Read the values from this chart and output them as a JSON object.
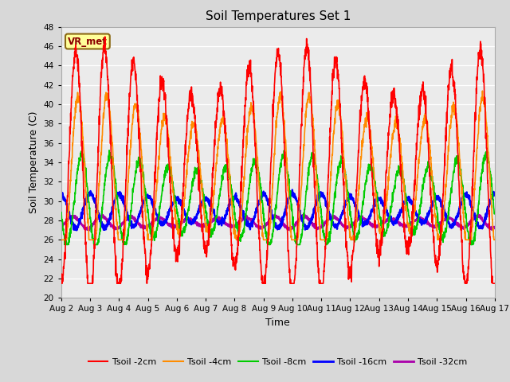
{
  "title": "Soil Temperatures Set 1",
  "xlabel": "Time",
  "ylabel": "Soil Temperature (C)",
  "ylim": [
    20,
    48
  ],
  "yticks": [
    20,
    22,
    24,
    26,
    28,
    30,
    32,
    34,
    36,
    38,
    40,
    42,
    44,
    46,
    48
  ],
  "x_labels": [
    "Aug 2",
    "Aug 3",
    "Aug 4",
    "Aug 5",
    "Aug 6",
    "Aug 7",
    "Aug 8",
    "Aug 9",
    "Aug 10",
    "Aug 11",
    "Aug 12",
    "Aug 13",
    "Aug 14",
    "Aug 15",
    "Aug 16",
    "Aug 17"
  ],
  "annotation_text": "VR_met",
  "annotation_color": "#8B0000",
  "annotation_bg": "#FFFF99",
  "annotation_border": "#8B6914",
  "colors": {
    "Tsoil -2cm": "#FF0000",
    "Tsoil -4cm": "#FF8C00",
    "Tsoil -8cm": "#00CC00",
    "Tsoil -16cm": "#0000FF",
    "Tsoil -32cm": "#AA00AA"
  },
  "line_width": 1.2,
  "bg_color": "#D8D8D8",
  "plot_bg": "#EBEBEB",
  "n_days": 15,
  "pts_per_day": 144,
  "figsize": [
    6.4,
    4.8
  ],
  "dpi": 100
}
